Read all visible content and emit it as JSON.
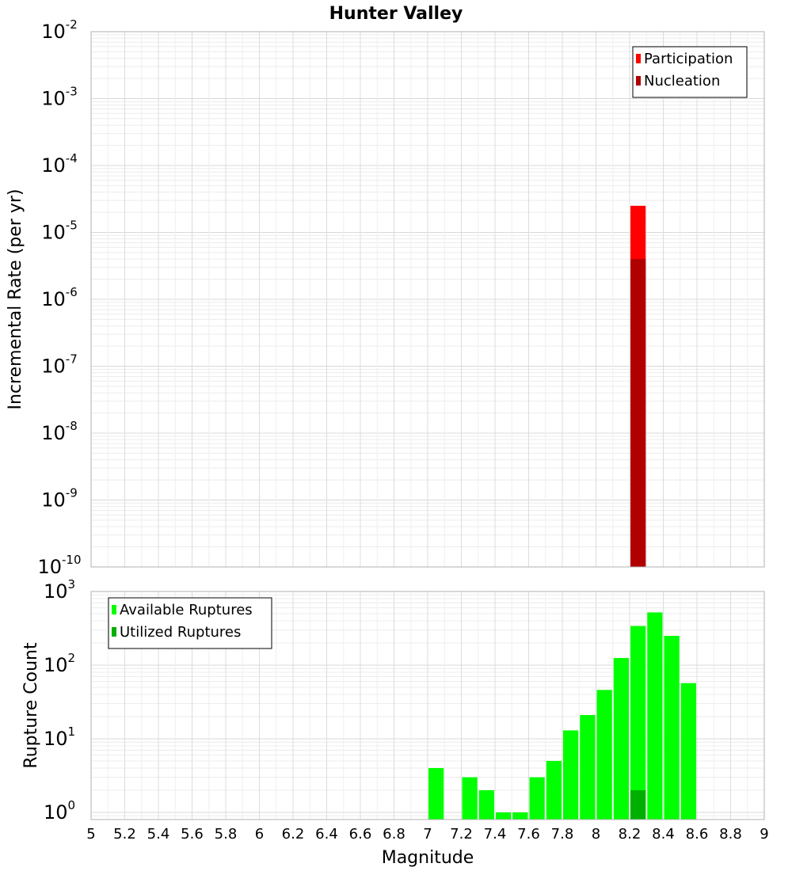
{
  "chart_data": [
    {
      "type": "bar",
      "title": "Hunter Valley",
      "ylabel": "Incremental Rate (per yr)",
      "xlabel": "",
      "yscale": "log",
      "xlim": [
        5,
        9
      ],
      "ylim": [
        1e-10,
        0.01
      ],
      "y_ticks": [
        {
          "base": "10",
          "exp": "-10",
          "value": 1e-10
        },
        {
          "base": "10",
          "exp": "-9",
          "value": 1e-09
        },
        {
          "base": "10",
          "exp": "-8",
          "value": 1e-08
        },
        {
          "base": "10",
          "exp": "-7",
          "value": 1e-07
        },
        {
          "base": "10",
          "exp": "-6",
          "value": 1e-06
        },
        {
          "base": "10",
          "exp": "-5",
          "value": 1e-05
        },
        {
          "base": "10",
          "exp": "-4",
          "value": 0.0001
        },
        {
          "base": "10",
          "exp": "-3",
          "value": 0.001
        },
        {
          "base": "10",
          "exp": "-2",
          "value": 0.01
        }
      ],
      "grid": true,
      "legend_position": "top-right",
      "series": [
        {
          "name": "Participation",
          "color": "#ff0000",
          "x": [
            8.25
          ],
          "values": [
            2.5e-05
          ]
        },
        {
          "name": "Nucleation",
          "color": "#b00000",
          "x": [
            8.25
          ],
          "values": [
            4e-06
          ]
        }
      ]
    },
    {
      "type": "bar",
      "title": "",
      "ylabel": "Rupture Count",
      "xlabel": "Magnitude",
      "yscale": "log",
      "xlim": [
        5,
        9
      ],
      "ylim": [
        0.8,
        1000
      ],
      "y_ticks": [
        {
          "base": "10",
          "exp": "0",
          "value": 1
        },
        {
          "base": "10",
          "exp": "1",
          "value": 10
        },
        {
          "base": "10",
          "exp": "2",
          "value": 100
        },
        {
          "base": "10",
          "exp": "3",
          "value": 1000
        }
      ],
      "x_ticks": [
        "5",
        "5.2",
        "5.4",
        "5.6",
        "5.8",
        "6",
        "6.2",
        "6.4",
        "6.6",
        "6.8",
        "7",
        "7.2",
        "7.4",
        "7.6",
        "7.8",
        "8",
        "8.2",
        "8.4",
        "8.6",
        "8.8",
        "9"
      ],
      "grid": true,
      "legend_position": "top-left",
      "series": [
        {
          "name": "Available Ruptures",
          "color": "#00ff00",
          "x": [
            7.05,
            7.25,
            7.35,
            7.45,
            7.55,
            7.65,
            7.75,
            7.85,
            7.95,
            8.05,
            8.15,
            8.25,
            8.35,
            8.45,
            8.55
          ],
          "values": [
            4,
            3,
            2,
            1,
            1,
            3,
            5,
            13,
            21,
            46,
            125,
            340,
            520,
            250,
            57
          ]
        },
        {
          "name": "Utilized Ruptures",
          "color": "#00b000",
          "x": [
            8.25
          ],
          "values": [
            2
          ]
        }
      ]
    }
  ]
}
